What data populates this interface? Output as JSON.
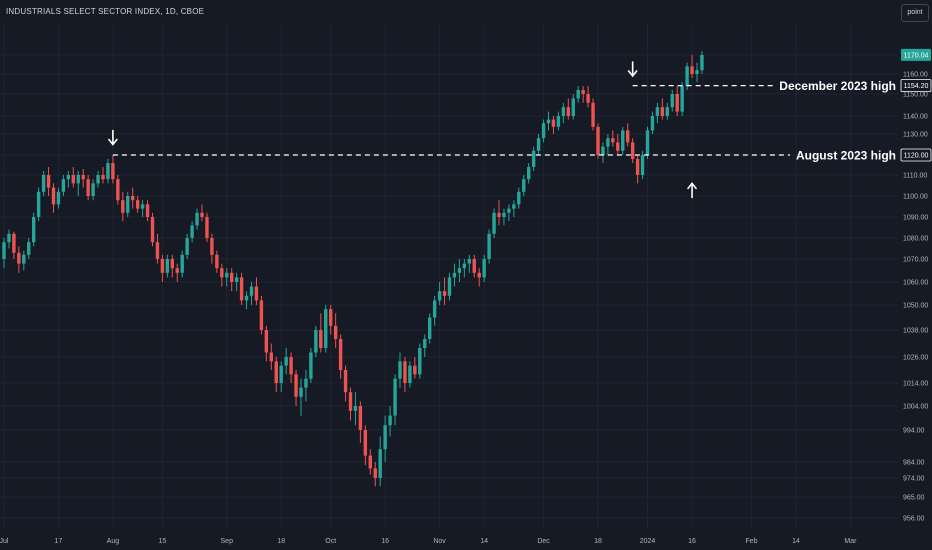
{
  "header": {
    "title": "INDUSTRIALS SELECT SECTOR INDEX, 1D, CBOE",
    "point_button": "point"
  },
  "colors": {
    "background": "#161a25",
    "up": "#26a69a",
    "down": "#ef5350",
    "text": "#b2b5be",
    "arrow": "#ffffff"
  },
  "chart_data": {
    "type": "candlestick",
    "y_ticks": [
      956,
      965,
      974,
      984,
      994,
      1004,
      1014,
      1026,
      1038,
      1050,
      1060,
      1070,
      1080,
      1090,
      1100,
      1110,
      1120,
      1130,
      1140,
      1150,
      1160,
      1170
    ],
    "y_tick_labels": [
      "956.00",
      "965.00",
      "974.00",
      "984.00",
      "994.00",
      "1004.00",
      "1014.00",
      "1026.00",
      "1038.00",
      "1050.00",
      "1060.00",
      "1070.00",
      "1080.00",
      "1090.00",
      "1100.00",
      "1110.00",
      "1120.00",
      "1130.00",
      "1140.00",
      "1150.00",
      "1160.00",
      "1170.00"
    ],
    "x_ticks": [
      "Jul",
      "17",
      "Aug",
      "15",
      "Sep",
      "18",
      "Oct",
      "16",
      "Nov",
      "14",
      "Dec",
      "18",
      "2024",
      "16",
      "Feb",
      "14",
      "Mar"
    ],
    "x_tick_bar_index": [
      0,
      11,
      22,
      32,
      45,
      56,
      66,
      77,
      88,
      97,
      109,
      120,
      130,
      139,
      151,
      160,
      171
    ],
    "price_labels": [
      {
        "value": "1170.04",
        "price": 1170.04,
        "style": "last"
      },
      {
        "value": "1154.20",
        "price": 1154.2,
        "style": "outline"
      },
      {
        "value": "1120.00",
        "price": 1120.0,
        "style": "outline"
      }
    ],
    "levels": [
      {
        "name": "December 2023 high",
        "price": 1154.2,
        "start_bar": 127
      },
      {
        "name": "August 2023 high",
        "price": 1120.0,
        "start_bar": 22
      }
    ],
    "arrows": [
      {
        "bar": 22,
        "price": 1125,
        "direction": "down"
      },
      {
        "bar": 127,
        "price": 1159,
        "direction": "down"
      },
      {
        "bar": 139,
        "price": 1106,
        "direction": "up"
      }
    ],
    "candles": [
      [
        1070,
        1080,
        1066,
        1078
      ],
      [
        1078,
        1084,
        1075,
        1082
      ],
      [
        1082,
        1083,
        1070,
        1073
      ],
      [
        1073,
        1076,
        1064,
        1068
      ],
      [
        1068,
        1074,
        1065,
        1072
      ],
      [
        1072,
        1080,
        1070,
        1078
      ],
      [
        1078,
        1092,
        1076,
        1090
      ],
      [
        1090,
        1104,
        1088,
        1102
      ],
      [
        1102,
        1112,
        1100,
        1110
      ],
      [
        1110,
        1114,
        1100,
        1104
      ],
      [
        1104,
        1106,
        1092,
        1096
      ],
      [
        1096,
        1104,
        1094,
        1102
      ],
      [
        1102,
        1110,
        1100,
        1108
      ],
      [
        1108,
        1112,
        1104,
        1110
      ],
      [
        1110,
        1114,
        1104,
        1106
      ],
      [
        1106,
        1112,
        1100,
        1110
      ],
      [
        1110,
        1113,
        1104,
        1108
      ],
      [
        1108,
        1110,
        1098,
        1100
      ],
      [
        1100,
        1108,
        1098,
        1106
      ],
      [
        1106,
        1112,
        1104,
        1110
      ],
      [
        1110,
        1114,
        1106,
        1108
      ],
      [
        1108,
        1118,
        1106,
        1116
      ],
      [
        1116,
        1120,
        1106,
        1108
      ],
      [
        1108,
        1110,
        1096,
        1098
      ],
      [
        1098,
        1102,
        1088,
        1092
      ],
      [
        1092,
        1102,
        1090,
        1100
      ],
      [
        1100,
        1104,
        1094,
        1098
      ],
      [
        1098,
        1100,
        1092,
        1094
      ],
      [
        1094,
        1098,
        1090,
        1096
      ],
      [
        1096,
        1098,
        1088,
        1090
      ],
      [
        1090,
        1092,
        1076,
        1078
      ],
      [
        1078,
        1082,
        1068,
        1070
      ],
      [
        1070,
        1072,
        1060,
        1064
      ],
      [
        1064,
        1072,
        1062,
        1070
      ],
      [
        1070,
        1072,
        1062,
        1066
      ],
      [
        1066,
        1068,
        1060,
        1064
      ],
      [
        1064,
        1074,
        1062,
        1072
      ],
      [
        1072,
        1082,
        1070,
        1080
      ],
      [
        1080,
        1088,
        1078,
        1086
      ],
      [
        1086,
        1094,
        1084,
        1092
      ],
      [
        1092,
        1096,
        1088,
        1090
      ],
      [
        1090,
        1092,
        1078,
        1080
      ],
      [
        1080,
        1082,
        1068,
        1072
      ],
      [
        1072,
        1074,
        1064,
        1066
      ],
      [
        1066,
        1068,
        1058,
        1062
      ],
      [
        1062,
        1066,
        1058,
        1064
      ],
      [
        1064,
        1066,
        1056,
        1060
      ],
      [
        1060,
        1064,
        1056,
        1062
      ],
      [
        1062,
        1064,
        1050,
        1052
      ],
      [
        1052,
        1056,
        1048,
        1054
      ],
      [
        1054,
        1060,
        1050,
        1058
      ],
      [
        1058,
        1062,
        1050,
        1052
      ],
      [
        1052,
        1054,
        1036,
        1038
      ],
      [
        1038,
        1040,
        1024,
        1028
      ],
      [
        1028,
        1032,
        1020,
        1024
      ],
      [
        1024,
        1026,
        1010,
        1014
      ],
      [
        1014,
        1024,
        1010,
        1022
      ],
      [
        1022,
        1030,
        1018,
        1026
      ],
      [
        1026,
        1028,
        1014,
        1018
      ],
      [
        1018,
        1020,
        1004,
        1008
      ],
      [
        1008,
        1016,
        1000,
        1012
      ],
      [
        1012,
        1020,
        1006,
        1016
      ],
      [
        1016,
        1030,
        1014,
        1028
      ],
      [
        1028,
        1040,
        1026,
        1038
      ],
      [
        1038,
        1046,
        1028,
        1030
      ],
      [
        1030,
        1050,
        1028,
        1048
      ],
      [
        1048,
        1050,
        1036,
        1040
      ],
      [
        1040,
        1046,
        1030,
        1034
      ],
      [
        1034,
        1036,
        1016,
        1020
      ],
      [
        1020,
        1022,
        1006,
        1010
      ],
      [
        1010,
        1012,
        998,
        1002
      ],
      [
        1002,
        1010,
        996,
        1004
      ],
      [
        1004,
        1006,
        990,
        994
      ],
      [
        994,
        996,
        982,
        986
      ],
      [
        986,
        988,
        976,
        980
      ],
      [
        980,
        984,
        970,
        974
      ],
      [
        974,
        992,
        970,
        988
      ],
      [
        988,
        1000,
        984,
        996
      ],
      [
        996,
        1004,
        992,
        1000
      ],
      [
        1000,
        1018,
        996,
        1016
      ],
      [
        1016,
        1028,
        1012,
        1024
      ],
      [
        1024,
        1026,
        1010,
        1014
      ],
      [
        1014,
        1024,
        1012,
        1022
      ],
      [
        1022,
        1026,
        1016,
        1018
      ],
      [
        1018,
        1032,
        1016,
        1030
      ],
      [
        1030,
        1036,
        1026,
        1034
      ],
      [
        1034,
        1046,
        1032,
        1044
      ],
      [
        1044,
        1054,
        1040,
        1052
      ],
      [
        1052,
        1060,
        1050,
        1056
      ],
      [
        1056,
        1062,
        1050,
        1054
      ],
      [
        1054,
        1064,
        1052,
        1062
      ],
      [
        1062,
        1068,
        1058,
        1064
      ],
      [
        1064,
        1070,
        1060,
        1066
      ],
      [
        1066,
        1070,
        1062,
        1068
      ],
      [
        1068,
        1072,
        1064,
        1070
      ],
      [
        1070,
        1072,
        1062,
        1064
      ],
      [
        1064,
        1066,
        1058,
        1062
      ],
      [
        1062,
        1072,
        1060,
        1070
      ],
      [
        1070,
        1084,
        1068,
        1082
      ],
      [
        1082,
        1094,
        1080,
        1092
      ],
      [
        1092,
        1098,
        1086,
        1090
      ],
      [
        1090,
        1094,
        1086,
        1092
      ],
      [
        1092,
        1096,
        1088,
        1094
      ],
      [
        1094,
        1098,
        1090,
        1096
      ],
      [
        1096,
        1104,
        1094,
        1102
      ],
      [
        1102,
        1110,
        1100,
        1108
      ],
      [
        1108,
        1116,
        1106,
        1114
      ],
      [
        1114,
        1124,
        1112,
        1122
      ],
      [
        1122,
        1130,
        1120,
        1128
      ],
      [
        1128,
        1138,
        1126,
        1136
      ],
      [
        1136,
        1142,
        1132,
        1138
      ],
      [
        1138,
        1140,
        1130,
        1134
      ],
      [
        1134,
        1142,
        1132,
        1140
      ],
      [
        1140,
        1146,
        1136,
        1144
      ],
      [
        1144,
        1148,
        1138,
        1140
      ],
      [
        1140,
        1150,
        1138,
        1148
      ],
      [
        1148,
        1154,
        1146,
        1152
      ],
      [
        1152,
        1154,
        1146,
        1150
      ],
      [
        1150,
        1154,
        1144,
        1146
      ],
      [
        1146,
        1148,
        1132,
        1134
      ],
      [
        1134,
        1136,
        1118,
        1120
      ],
      [
        1120,
        1126,
        1116,
        1124
      ],
      [
        1124,
        1130,
        1120,
        1128
      ],
      [
        1128,
        1132,
        1124,
        1126
      ],
      [
        1126,
        1130,
        1120,
        1122
      ],
      [
        1122,
        1134,
        1120,
        1132
      ],
      [
        1132,
        1136,
        1124,
        1126
      ],
      [
        1126,
        1128,
        1116,
        1118
      ],
      [
        1118,
        1120,
        1106,
        1110
      ],
      [
        1110,
        1122,
        1108,
        1120
      ],
      [
        1120,
        1134,
        1118,
        1132
      ],
      [
        1132,
        1142,
        1130,
        1140
      ],
      [
        1140,
        1146,
        1136,
        1144
      ],
      [
        1144,
        1148,
        1138,
        1140
      ],
      [
        1140,
        1146,
        1138,
        1144
      ],
      [
        1144,
        1152,
        1142,
        1150
      ],
      [
        1150,
        1154,
        1140,
        1142
      ],
      [
        1142,
        1156,
        1140,
        1154
      ],
      [
        1154,
        1166,
        1152,
        1164
      ],
      [
        1164,
        1170,
        1158,
        1160
      ],
      [
        1160,
        1166,
        1156,
        1162
      ],
      [
        1162,
        1172,
        1160,
        1170
      ]
    ]
  }
}
